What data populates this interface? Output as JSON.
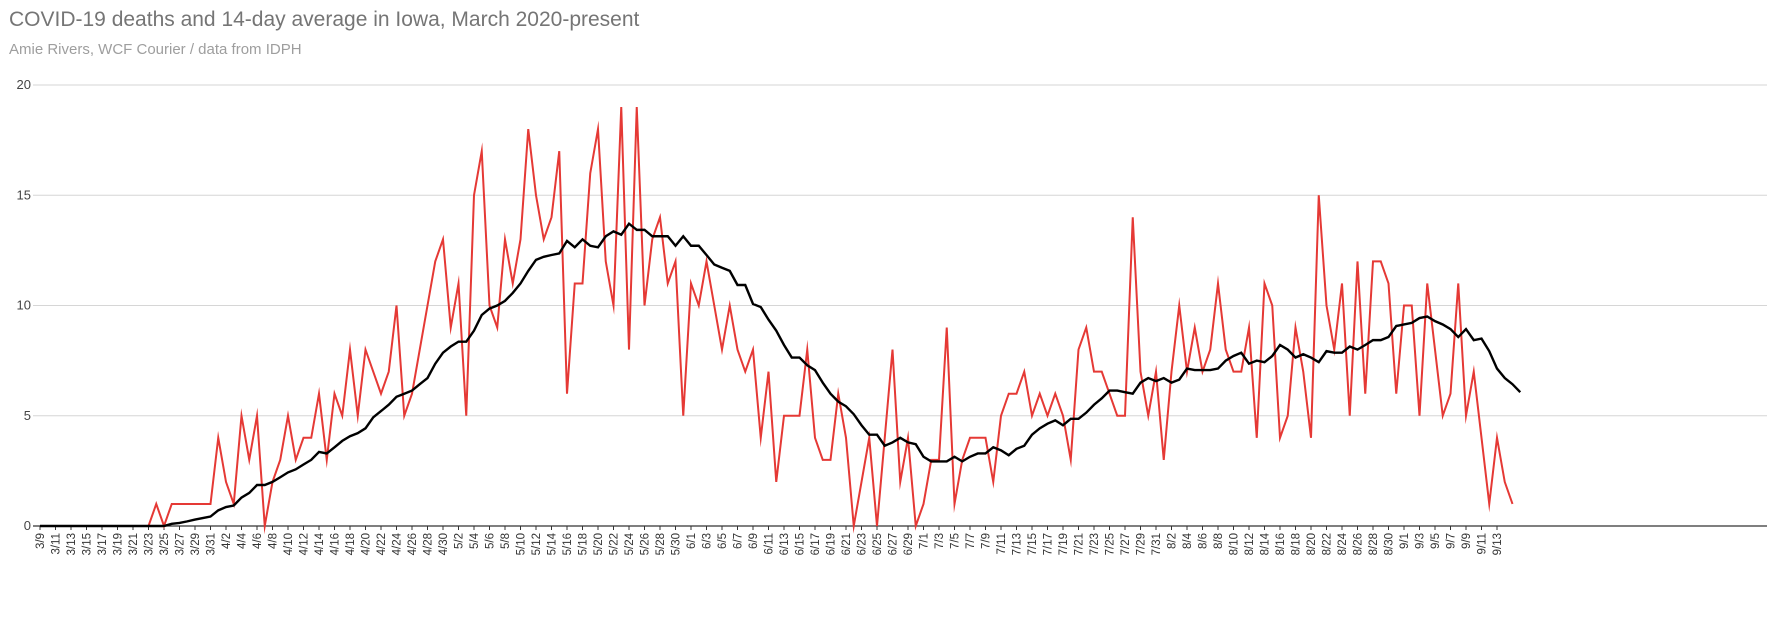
{
  "title": "COVID-19 deaths and 14-day average in Iowa, March 2020-present",
  "subtitle": "Amie Rivers, WCF Courier / data from IDPH",
  "colors": {
    "deaths": "#e53935",
    "average": "#000000",
    "grid": "#d6d6d6",
    "axis": "#333333"
  },
  "chart_data": {
    "type": "line",
    "title": "COVID-19 deaths and 14-day average in Iowa, March 2020-present",
    "subtitle": "Amie Rivers, WCF Courier / data from IDPH",
    "xlabel": "",
    "ylabel": "",
    "ylim": [
      0,
      20
    ],
    "yticks": [
      0,
      5,
      10,
      15,
      20
    ],
    "grid": true,
    "legend": "none",
    "x_start": "3/9",
    "x_end": "9/14",
    "x_tick_labels": [
      "3/9",
      "3/11",
      "3/13",
      "3/15",
      "3/17",
      "3/19",
      "3/21",
      "3/23",
      "3/25",
      "3/27",
      "3/29",
      "3/31",
      "4/2",
      "4/4",
      "4/6",
      "4/8",
      "4/10",
      "4/12",
      "4/14",
      "4/16",
      "4/18",
      "4/20",
      "4/22",
      "4/24",
      "4/26",
      "4/28",
      "4/30",
      "5/2",
      "5/4",
      "5/6",
      "5/8",
      "5/10",
      "5/12",
      "5/14",
      "5/16",
      "5/18",
      "5/20",
      "5/22",
      "5/24",
      "5/26",
      "5/28",
      "5/30",
      "6/1",
      "6/3",
      "6/5",
      "6/7",
      "6/9",
      "6/11",
      "6/13",
      "6/15",
      "6/17",
      "6/19",
      "6/21",
      "6/23",
      "6/25",
      "6/27",
      "6/29",
      "7/1",
      "7/3",
      "7/5",
      "7/7",
      "7/9",
      "7/11",
      "7/13",
      "7/15",
      "7/17",
      "7/19",
      "7/21",
      "7/23",
      "7/25",
      "7/27",
      "7/29",
      "7/31",
      "8/2",
      "8/4",
      "8/6",
      "8/8",
      "8/10",
      "8/12",
      "8/14",
      "8/16",
      "8/18",
      "8/20",
      "8/22",
      "8/24",
      "8/26",
      "8/28",
      "8/30",
      "9/1",
      "9/3",
      "9/5",
      "9/7",
      "9/9",
      "9/11",
      "9/13"
    ],
    "series": [
      {
        "key": "deaths",
        "values": [
          0,
          0,
          0,
          0,
          0,
          0,
          0,
          0,
          0,
          0,
          0,
          0,
          0,
          0,
          0,
          1,
          0,
          1,
          1,
          1,
          1,
          1,
          1,
          4,
          2,
          1,
          5,
          3,
          5,
          0,
          2,
          3,
          5,
          3,
          4,
          4,
          6,
          3,
          6,
          5,
          8,
          5,
          8,
          7,
          6,
          7,
          10,
          5,
          6,
          8,
          10,
          12,
          13,
          9,
          11,
          5,
          15,
          17,
          10,
          9,
          13,
          11,
          13,
          18,
          15,
          13,
          14,
          17,
          6,
          11,
          11,
          16,
          18,
          12,
          10,
          19,
          8,
          19,
          10,
          13,
          14,
          11,
          12,
          5,
          11,
          10,
          12,
          10,
          8,
          10,
          8,
          7,
          8,
          4,
          7,
          2,
          5,
          5,
          5,
          8,
          4,
          3,
          3,
          6,
          4,
          0,
          2,
          4,
          0,
          4,
          8,
          2,
          4,
          0,
          1,
          3,
          3,
          9,
          1,
          3,
          4,
          4,
          4,
          2,
          5,
          6,
          6,
          7,
          5,
          6,
          5,
          6,
          5,
          3,
          8,
          9,
          7,
          7,
          6,
          5,
          5,
          14,
          7,
          5,
          7,
          3,
          7,
          10,
          7,
          9,
          7,
          8,
          11,
          8,
          7,
          7,
          9,
          4,
          11,
          10,
          4,
          5,
          9,
          7,
          4,
          15,
          10,
          8,
          11,
          5,
          12,
          6,
          12,
          12,
          11,
          6,
          10,
          10,
          5,
          11,
          8,
          5,
          6,
          11,
          5,
          7,
          4,
          1,
          4,
          2,
          1
        ]
      },
      {
        "key": "average",
        "values": [
          0,
          0,
          0,
          0,
          0,
          0,
          0,
          0,
          0,
          0,
          0,
          0,
          0,
          0,
          0,
          0,
          0,
          0.1,
          0.14,
          0.21,
          0.29,
          0.36,
          0.43,
          0.71,
          0.86,
          0.93,
          1.29,
          1.5,
          1.86,
          1.86,
          2.0,
          2.21,
          2.43,
          2.57,
          2.79,
          3.0,
          3.36,
          3.29,
          3.57,
          3.86,
          4.07,
          4.21,
          4.43,
          4.93,
          5.21,
          5.5,
          5.86,
          6.0,
          6.14,
          6.43,
          6.71,
          7.36,
          7.86,
          8.14,
          8.36,
          8.36,
          8.86,
          9.57,
          9.86,
          10.0,
          10.21,
          10.57,
          11.0,
          11.57,
          12.07,
          12.21,
          12.29,
          12.36,
          12.93,
          12.64,
          13.0,
          12.71,
          12.64,
          13.14,
          13.36,
          13.21,
          13.71,
          13.43,
          13.43,
          13.14,
          13.14,
          13.14,
          12.71,
          13.14,
          12.71,
          12.71,
          12.29,
          11.86,
          11.71,
          11.57,
          10.93,
          10.93,
          10.07,
          9.93,
          9.36,
          8.86,
          8.21,
          7.64,
          7.64,
          7.29,
          7.07,
          6.5,
          6.0,
          5.64,
          5.43,
          5.07,
          4.57,
          4.14,
          4.14,
          3.64,
          3.79,
          4.0,
          3.79,
          3.71,
          3.14,
          2.93,
          2.93,
          2.93,
          3.14,
          2.93,
          3.14,
          3.29,
          3.29,
          3.57,
          3.43,
          3.21,
          3.5,
          3.64,
          4.14,
          4.43,
          4.64,
          4.79,
          4.57,
          4.86,
          4.86,
          5.14,
          5.5,
          5.79,
          6.14,
          6.14,
          6.07,
          6.0,
          6.5,
          6.71,
          6.57,
          6.71,
          6.5,
          6.64,
          7.14,
          7.07,
          7.07,
          7.07,
          7.14,
          7.5,
          7.71,
          7.86,
          7.36,
          7.5,
          7.43,
          7.71,
          8.21,
          8.0,
          7.64,
          7.79,
          7.64,
          7.43,
          7.93,
          7.86,
          7.86,
          8.14,
          8.0,
          8.21,
          8.43,
          8.43,
          8.57,
          9.07,
          9.14,
          9.21,
          9.43,
          9.5,
          9.29,
          9.14,
          8.93,
          8.57,
          8.93,
          8.43,
          8.5,
          7.93,
          7.14,
          6.71,
          6.43,
          6.07
        ]
      }
    ]
  }
}
